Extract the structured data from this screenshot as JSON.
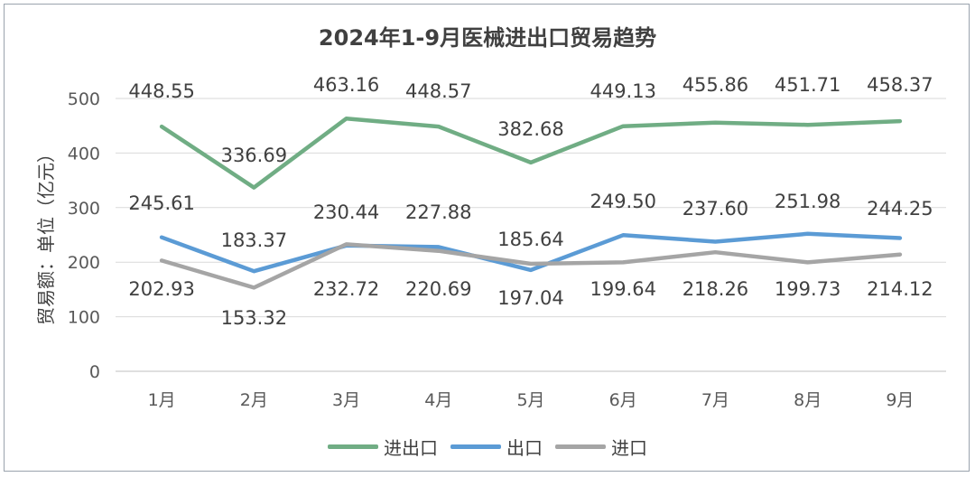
{
  "chart_data": {
    "type": "line",
    "title": "2024年1-9月医械进出口贸易趋势",
    "ylabel": "贸易额：单位（亿元）",
    "xlabel": "",
    "categories": [
      "1月",
      "2月",
      "3月",
      "4月",
      "5月",
      "6月",
      "7月",
      "8月",
      "9月"
    ],
    "ylim": [
      0,
      500
    ],
    "yticks": [
      0,
      100,
      200,
      300,
      400,
      500
    ],
    "grid": true,
    "legend_position": "bottom",
    "series": [
      {
        "name": "进出口",
        "color": "#70ad84",
        "values": [
          448.55,
          336.69,
          463.16,
          448.57,
          382.68,
          449.13,
          455.86,
          451.71,
          458.37
        ]
      },
      {
        "name": "出口",
        "color": "#5b9bd5",
        "values": [
          245.61,
          183.37,
          230.44,
          227.88,
          185.64,
          249.5,
          237.6,
          251.98,
          244.25
        ]
      },
      {
        "name": "进口",
        "color": "#a5a5a5",
        "values": [
          202.93,
          153.32,
          232.72,
          220.69,
          197.04,
          199.64,
          218.26,
          199.73,
          214.12
        ]
      }
    ],
    "labels": {
      "进出口": [
        "448.55",
        "336.69",
        "463.16",
        "448.57",
        "382.68",
        "449.13",
        "455.86",
        "451.71",
        "458.37"
      ],
      "出口": [
        "245.61",
        "183.37",
        "230.44",
        "227.88",
        "185.64",
        "249.50",
        "237.60",
        "251.98",
        "244.25"
      ],
      "进口": [
        "202.93",
        "153.32",
        "232.72",
        "220.69",
        "197.04",
        "199.64",
        "218.26",
        "199.73",
        "214.12"
      ]
    }
  }
}
